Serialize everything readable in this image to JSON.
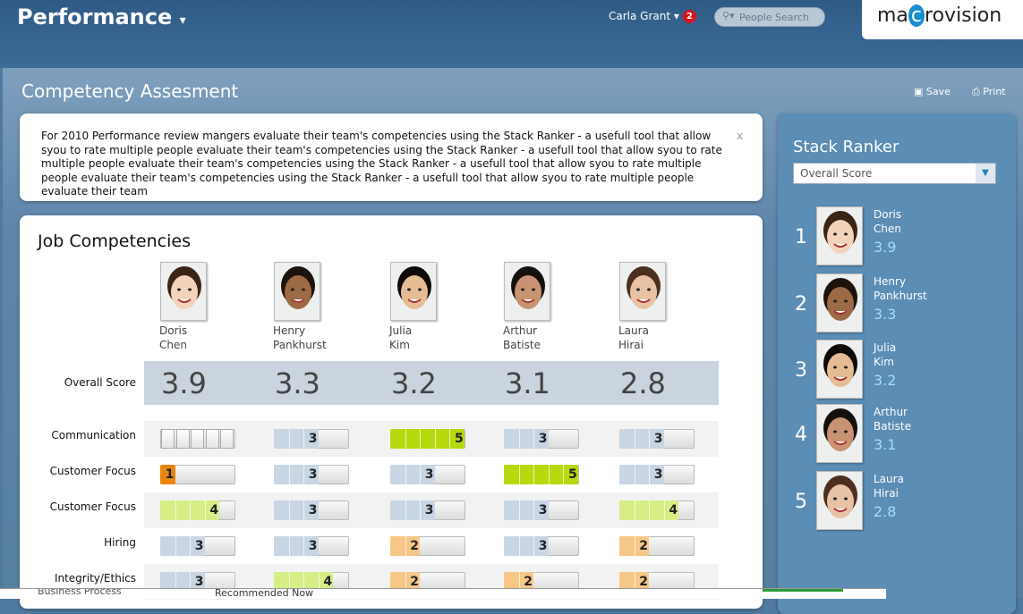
{
  "header": {
    "app": "Performance",
    "user": "Carla Grant",
    "notifications": 2,
    "search_placeholder": "People Search",
    "logo_left": "ma",
    "logo_mid": "c",
    "logo_right": "rovision"
  },
  "page": {
    "title": "Competency Assesment",
    "actions": [
      "Save",
      "Print"
    ]
  },
  "notice": {
    "text": "For 2010 Performance review mangers evaluate their team's competencies using the Stack Ranker - a usefull tool that allow syou to rate multiple people evaluate their team's competencies using the Stack Ranker - a usefull tool that allow syou to rate multiple people evaluate their team's competencies using the Stack Ranker - a usefull tool that allow syou to rate multiple people evaluate their team's competencies using the Stack Ranker - a usefull tool that allow syou to rate multiple people evaluate their team",
    "close": "x"
  },
  "competencies": {
    "title": "Job Competencies",
    "people": [
      {
        "first": "Doris",
        "last": "Chen"
      },
      {
        "first": "Henry",
        "last": "Pankhurst"
      },
      {
        "first": "Julia",
        "last": "Kim"
      },
      {
        "first": "Arthur",
        "last": "Batiste"
      },
      {
        "first": "Laura",
        "last": "Hirai"
      }
    ],
    "overall_label": "Overall Score",
    "overall": [
      3.9,
      3.3,
      3.2,
      3.1,
      2.8
    ],
    "rows": [
      {
        "label": "Communication",
        "scores": [
          null,
          3,
          5,
          3,
          3
        ]
      },
      {
        "label": "Customer Focus",
        "scores": [
          1,
          3,
          3,
          5,
          3
        ]
      },
      {
        "label": "Customer Focus",
        "scores": [
          4,
          3,
          3,
          3,
          4
        ]
      },
      {
        "label": "Hiring",
        "scores": [
          3,
          3,
          2,
          3,
          2
        ]
      },
      {
        "label": "Integrity/Ethics",
        "scores": [
          3,
          4,
          2,
          2,
          2
        ]
      }
    ]
  },
  "ranker": {
    "title": "Stack Ranker",
    "sort": "Overall Score",
    "entries": [
      {
        "rank": 1,
        "first": "Doris",
        "last": "Chen",
        "score": 3.9
      },
      {
        "rank": 2,
        "first": "Henry",
        "last": "Pankhurst",
        "score": 3.3
      },
      {
        "rank": 3,
        "first": "Julia",
        "last": "Kim",
        "score": 3.2
      },
      {
        "rank": 4,
        "first": "Arthur",
        "last": "Batiste",
        "score": 3.1
      },
      {
        "rank": 5,
        "first": "Laura",
        "last": "Hirai",
        "score": 2.8
      }
    ]
  },
  "footer": [
    "Business Process",
    "Recommended Now"
  ]
}
